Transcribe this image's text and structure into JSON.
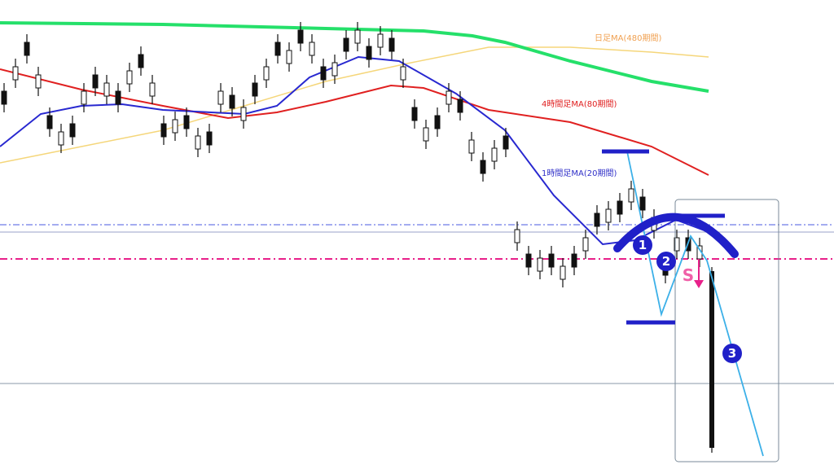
{
  "annotations": {
    "daily_ma": "日足MA(480期間)",
    "h4_ma": "4時間足MA(80期間)",
    "h1_ma": "1時間足MA(20期間)"
  },
  "markers": [
    "1",
    "2",
    "3"
  ],
  "signal": "S"
}
